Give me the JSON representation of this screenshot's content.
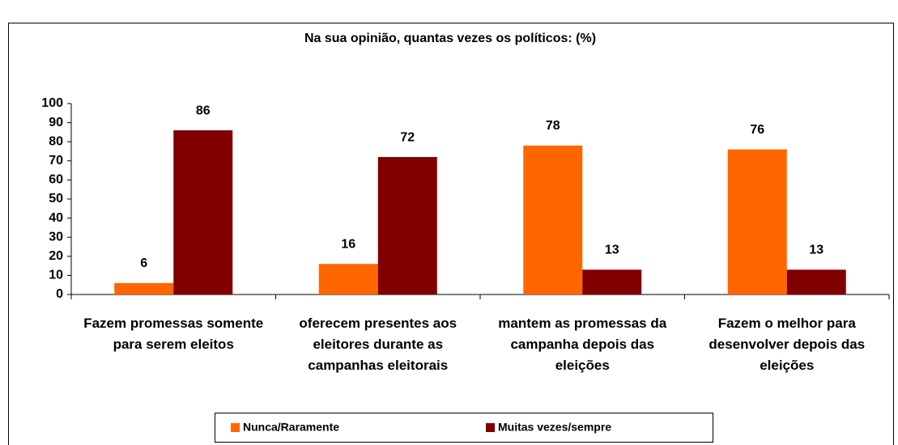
{
  "chart_data": {
    "type": "bar",
    "title": "Na sua opinião, quantas vezes os políticos: (%)",
    "categories": [
      "Fazem promessas somente para serem eleitos",
      "oferecem presentes aos eleitores durante as campanhas eleitorais",
      "mantem as promessas da campanha depois das eleições",
      "Fazem o melhor para desenvolver depois das eleições"
    ],
    "series": [
      {
        "name": "Nunca/Raramente",
        "color": "#ff6600",
        "values": [
          6,
          16,
          78,
          76
        ]
      },
      {
        "name": "Muitas vezes/sempre",
        "color": "#800000",
        "values": [
          86,
          72,
          13,
          13
        ]
      }
    ],
    "ylim": [
      0,
      100
    ],
    "yticks": [
      0,
      10,
      20,
      30,
      40,
      50,
      60,
      70,
      80,
      90,
      100
    ],
    "legend": "bottom"
  }
}
